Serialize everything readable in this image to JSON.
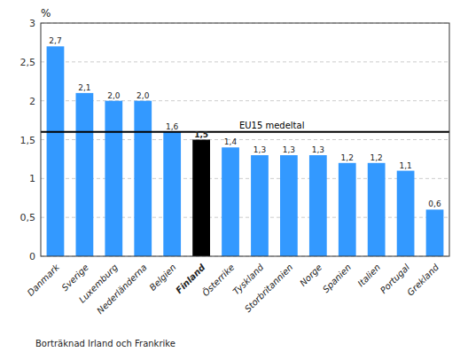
{
  "chart_data": {
    "type": "bar",
    "y_label": "%",
    "categories": [
      "Danmark",
      "Sverige",
      "Luxemburg",
      "Nederländerna",
      "Belgien",
      "Finland",
      "Österrike",
      "Tyskland",
      "Storbritannien",
      "Norge",
      "Spanien",
      "Italien",
      "Portugal",
      "Grekland"
    ],
    "values": [
      2.7,
      2.1,
      2.0,
      2.0,
      1.6,
      1.5,
      1.4,
      1.3,
      1.3,
      1.3,
      1.2,
      1.2,
      1.1,
      0.6
    ],
    "value_labels": [
      "2,7",
      "2,1",
      "2,0",
      "2,0",
      "1,6",
      "1,5",
      "1,4",
      "1,3",
      "1,3",
      "1,3",
      "1,2",
      "1,2",
      "1,1",
      "0,6"
    ],
    "colors": [
      "#3399FF",
      "#3399FF",
      "#3399FF",
      "#3399FF",
      "#3399FF",
      "#000000",
      "#3399FF",
      "#3399FF",
      "#3399FF",
      "#3399FF",
      "#3399FF",
      "#3399FF",
      "#3399FF",
      "#3399FF"
    ],
    "data_labels": true,
    "ylim": [
      0,
      3.0
    ],
    "yticks": [
      0,
      {
        "value": 0.5,
        "label": "0,5"
      },
      1,
      {
        "value": 1.5,
        "label": "1,5"
      },
      2,
      {
        "value": 2.5,
        "label": "2,5"
      },
      3
    ],
    "grid": true,
    "annotations": [
      {
        "y": 1.6,
        "label": "EU15 medeltal"
      }
    ],
    "footnote": "Borträknad Irland och Frankrike"
  }
}
